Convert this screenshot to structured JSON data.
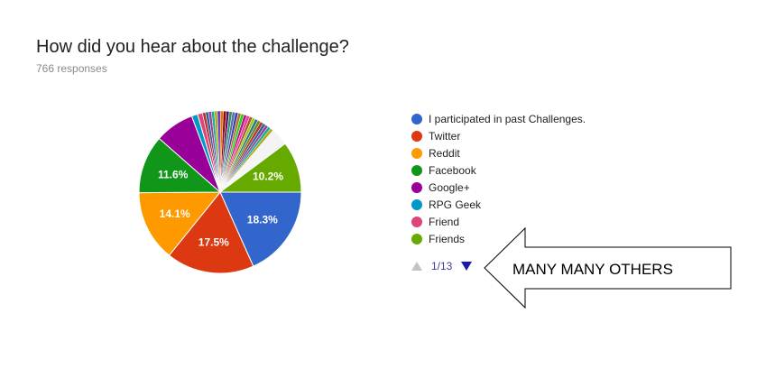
{
  "title": "How did you hear about the challenge?",
  "responses": "766 responses",
  "chart_data": {
    "type": "pie",
    "title": "How did you hear about the challenge?",
    "slices": [
      {
        "label": "I participated in past Challenges.",
        "value": 18.3,
        "color": "#3366cc",
        "show_label": true
      },
      {
        "label": "Twitter",
        "value": 17.5,
        "color": "#dc3912",
        "show_label": true
      },
      {
        "label": "Reddit",
        "value": 14.1,
        "color": "#ff9900",
        "show_label": true
      },
      {
        "label": "Facebook",
        "value": 11.6,
        "color": "#109618",
        "show_label": true
      },
      {
        "label": "Google+",
        "value": 7.8,
        "color": "#990099",
        "show_label": false
      },
      {
        "label": "RPG Geek",
        "value": 1.2,
        "color": "#0099c6",
        "show_label": false
      },
      {
        "label": "Friend",
        "value": 1.0,
        "color": "#dd4477",
        "show_label": false
      },
      {
        "label": "Friends",
        "value": 10.2,
        "color": "#66aa00",
        "show_label": true
      }
    ],
    "others": {
      "count": 31,
      "value": 18.3,
      "colors": [
        "#b82e2e",
        "#316395",
        "#994499",
        "#22aa99",
        "#aaaa11",
        "#6633cc",
        "#e67300",
        "#8b0707",
        "#651067",
        "#329262",
        "#5574a6",
        "#3b3eac",
        "#b77322",
        "#16d620",
        "#b91383",
        "#f4359e",
        "#9c5935",
        "#a9c413",
        "#2a778d",
        "#668d1c"
      ]
    }
  },
  "legend": {
    "items": [
      {
        "label": "I participated in past Challenges.",
        "color": "#3366cc"
      },
      {
        "label": "Twitter",
        "color": "#dc3912"
      },
      {
        "label": "Reddit",
        "color": "#ff9900"
      },
      {
        "label": "Facebook",
        "color": "#109618"
      },
      {
        "label": "Google+",
        "color": "#990099"
      },
      {
        "label": "RPG Geek",
        "color": "#0099c6"
      },
      {
        "label": "Friend",
        "color": "#dd4477"
      },
      {
        "label": "Friends",
        "color": "#66aa00"
      }
    ],
    "page": "1/13"
  },
  "annotation": {
    "text": "MANY MANY OTHERS"
  }
}
